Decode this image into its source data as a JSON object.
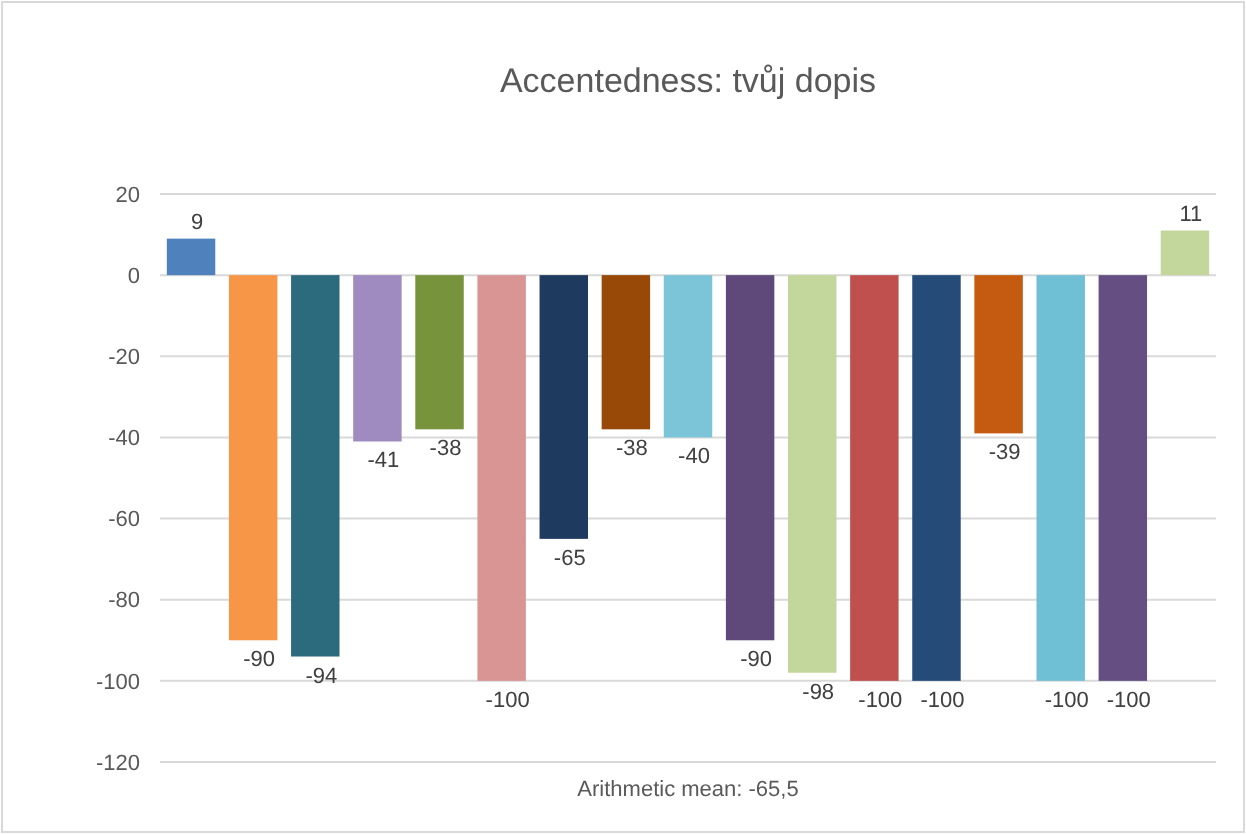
{
  "chart_data": {
    "type": "bar",
    "title": "Accentedness: tvůj dopis",
    "categories": [
      null,
      null,
      null,
      null,
      null,
      null,
      null,
      null,
      null,
      null,
      null,
      null,
      null,
      null,
      null,
      null,
      null
    ],
    "values": [
      9,
      -90,
      -94,
      -41,
      -38,
      -100,
      -65,
      -38,
      -40,
      -90,
      -98,
      -100,
      -100,
      -39,
      -100,
      -100,
      11
    ],
    "colors": [
      "#4f81bd",
      "#f79646",
      "#2c6b7e",
      "#9f8bbf",
      "#77933c",
      "#d99594",
      "#1f3a5f",
      "#984807",
      "#7cc5d9",
      "#5f497a",
      "#c3d69b",
      "#c0504d",
      "#254b78",
      "#c55a11",
      "#6fc0d5",
      "#644e82",
      "#c3d69b"
    ],
    "ylim": [
      -120,
      20
    ],
    "yticks": [
      -120,
      -100,
      -80,
      -60,
      -40,
      -20,
      0,
      20
    ],
    "grid": "y",
    "data_labels": true,
    "annotations": [
      "Arithmetic mean: -65,5"
    ]
  }
}
